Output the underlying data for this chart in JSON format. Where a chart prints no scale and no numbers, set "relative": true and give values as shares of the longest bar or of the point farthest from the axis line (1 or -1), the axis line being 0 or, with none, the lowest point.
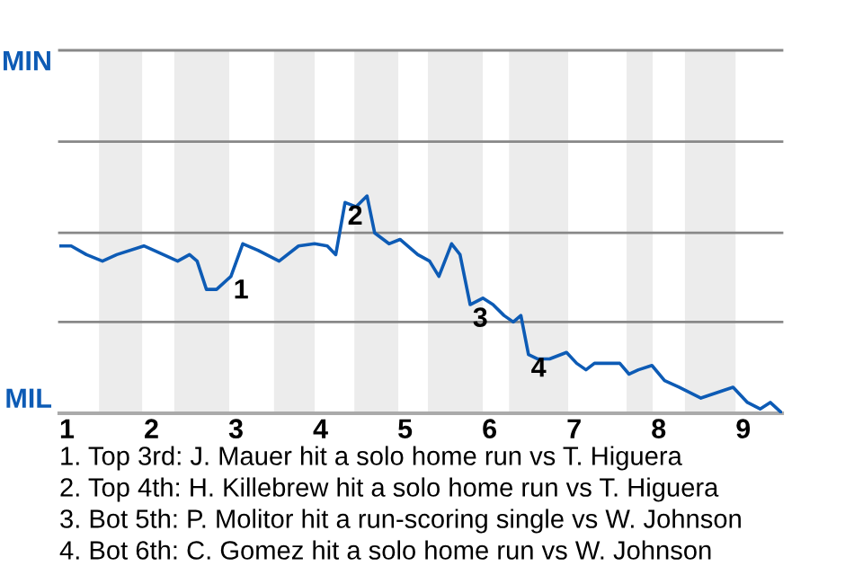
{
  "chart_data": {
    "type": "line",
    "relative": true,
    "x": [
      0.91,
      1.05,
      1.23,
      1.42,
      1.59,
      1.91,
      2.14,
      2.31,
      2.45,
      2.54,
      2.65,
      2.77,
      2.94,
      3.08,
      3.26,
      3.51,
      3.74,
      3.93,
      4.08,
      4.18,
      4.29,
      4.42,
      4.55,
      4.64,
      4.81,
      4.94,
      5.15,
      5.29,
      5.4,
      5.55,
      5.65,
      5.77,
      5.92,
      6.04,
      6.17,
      6.28,
      6.37,
      6.46,
      6.57,
      6.71,
      6.91,
      7.03,
      7.14,
      7.24,
      7.54,
      7.65,
      7.76,
      7.92,
      8.07,
      8.24,
      8.5,
      8.88,
      9.05,
      9.2,
      9.32,
      9.46
    ],
    "series": [
      {
        "color": "#0d5bb5",
        "values": [
          0.77,
          0.77,
          0.73,
          0.7,
          0.73,
          0.77,
          0.73,
          0.7,
          0.73,
          0.7,
          0.57,
          0.57,
          0.63,
          0.78,
          0.75,
          0.7,
          0.77,
          0.78,
          0.77,
          0.73,
          0.97,
          0.95,
          1.0,
          0.83,
          0.78,
          0.8,
          0.73,
          0.7,
          0.63,
          0.78,
          0.73,
          0.5,
          0.53,
          0.5,
          0.45,
          0.42,
          0.45,
          0.27,
          0.25,
          0.25,
          0.28,
          0.23,
          0.2,
          0.23,
          0.23,
          0.18,
          0.2,
          0.22,
          0.15,
          0.12,
          0.07,
          0.12,
          0.05,
          0.02,
          0.05,
          0.0
        ]
      }
    ],
    "xlim": [
      0.91,
      9.46
    ],
    "xticks": [
      1,
      2,
      3,
      4,
      5,
      6,
      7,
      8,
      9
    ],
    "ref_lines": [
      {
        "axis": "y",
        "value": 0.42,
        "color": "#888888"
      },
      {
        "axis": "y",
        "value": 0.83,
        "color": "#888888"
      },
      {
        "axis": "y",
        "value": 1.25,
        "color": "#888888"
      },
      {
        "axis": "y",
        "value": 1.67,
        "color": "#888888"
      }
    ],
    "bands": [
      {
        "axis": "x",
        "from": 1.38,
        "to": 1.89,
        "color": "#ececec"
      },
      {
        "axis": "x",
        "from": 2.27,
        "to": 2.92,
        "color": "#ececec"
      },
      {
        "axis": "x",
        "from": 3.45,
        "to": 3.93,
        "color": "#ececec"
      },
      {
        "axis": "x",
        "from": 4.4,
        "to": 4.92,
        "color": "#ececec"
      },
      {
        "axis": "x",
        "from": 5.27,
        "to": 5.92,
        "color": "#ececec"
      },
      {
        "axis": "x",
        "from": 6.23,
        "to": 6.93,
        "color": "#ececec"
      },
      {
        "axis": "x",
        "from": 7.62,
        "to": 7.93,
        "color": "#ececec"
      },
      {
        "axis": "x",
        "from": 8.31,
        "to": 8.91,
        "color": "#ececec"
      }
    ],
    "annotations": [
      "MIN",
      "MIL",
      {
        "text": "1",
        "x": 2.94,
        "y": 0.63
      },
      {
        "text": "2",
        "x": 4.29,
        "y": 0.97
      },
      {
        "text": "3",
        "x": 5.77,
        "y": 0.5
      },
      {
        "text": "4",
        "x": 6.46,
        "y": 0.27
      },
      "1. Top 3rd: J. Mauer hit a solo home run vs T. Higuera",
      "2. Top 4th: H. Killebrew hit a solo home run vs T. Higuera",
      "3. Bot 5th: P. Molitor hit a run-scoring single vs W. Johnson",
      "4. Bot 6th: C. Gomez hit a solo home run vs W. Johnson"
    ]
  }
}
